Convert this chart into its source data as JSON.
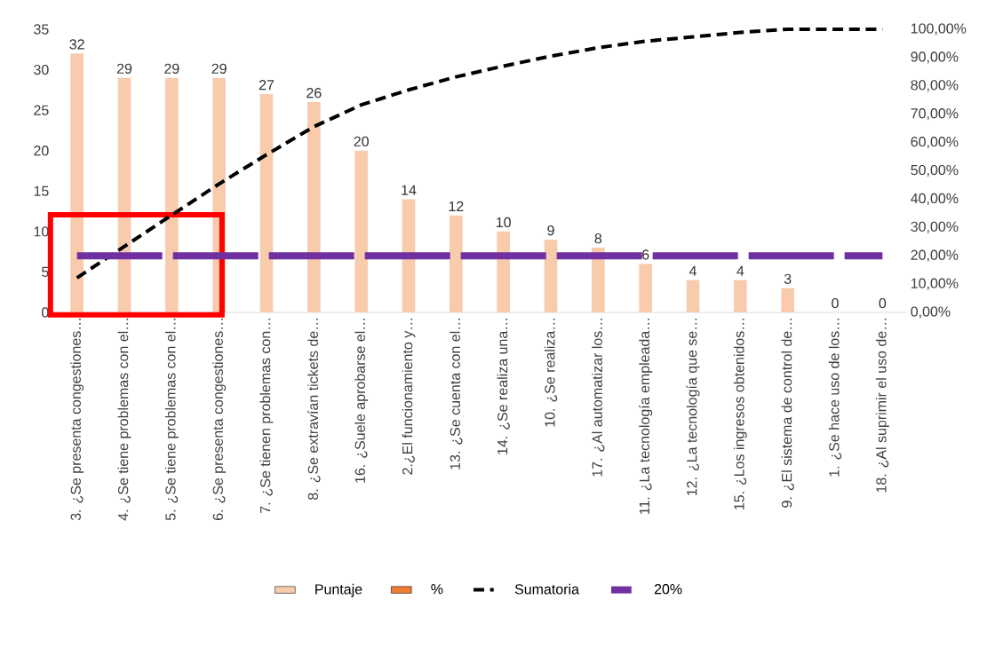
{
  "chart_data": {
    "type": "bar",
    "categories": [
      "3. ¿Se presenta congestiones…",
      "4. ¿Se tiene problemas con el…",
      "5. ¿Se tiene problemas con el…",
      "6. ¿Se presenta congestiones…",
      "7. ¿Se tienen problemas con…",
      "8. ¿Se extravían tickets de…",
      "16. ¿Suele aprobarse el…",
      "2.¿El funcionamiento y…",
      "13. ¿Se cuenta con el…",
      "14. ¿Se realiza una…",
      "10. ¿Se realiza…",
      "17. ¿Al automatizar los…",
      "11. ¿La tecnología empleada…",
      "12. ¿La tecnología que se…",
      "15. ¿Los ingresos obtenidos…",
      "9. ¿El sistema de control de…",
      "1. ¿Se hace uso de los…",
      "18. ¿Al suprimir el uso de…"
    ],
    "series": [
      {
        "name": "Puntaje",
        "color": "#f8cbad",
        "values": [
          32,
          29,
          29,
          29,
          27,
          26,
          20,
          14,
          12,
          10,
          9,
          8,
          6,
          4,
          4,
          3,
          0,
          0
        ],
        "value_labels": [
          "32",
          "29",
          "29",
          "29",
          "27",
          "26",
          "20",
          "14",
          "12",
          "10",
          "9",
          "8",
          "6",
          "4",
          "4",
          "3",
          "0",
          "0"
        ]
      },
      {
        "name": "%",
        "color": "#ed7d31",
        "values": [
          null,
          null,
          null,
          null,
          null,
          null,
          null,
          null,
          null,
          null,
          null,
          null,
          null,
          null,
          null,
          null,
          null,
          null
        ]
      },
      {
        "name": "Sumatoria",
        "type": "line",
        "axis": "y2",
        "color": "#000000",
        "line_style": "dashed",
        "values": [
          12.2,
          23.3,
          34.4,
          45.4,
          55.7,
          65.6,
          73.3,
          78.6,
          83.2,
          87.0,
          90.5,
          93.5,
          95.8,
          97.3,
          98.9,
          100,
          100,
          100
        ]
      },
      {
        "name": "20%",
        "type": "line",
        "axis": "y2",
        "color": "#7030a0",
        "line_style": "dashed",
        "values": [
          20,
          20,
          20,
          20,
          20,
          20,
          20,
          20,
          20,
          20,
          20,
          20,
          20,
          20,
          20,
          20,
          20,
          20
        ]
      }
    ],
    "ylim": [
      0,
      35
    ],
    "yticks": [
      0,
      5,
      10,
      15,
      20,
      25,
      30,
      35
    ],
    "y2lim": [
      0,
      100
    ],
    "y2ticks": [
      {
        "value": 0,
        "label": "0,00%"
      },
      {
        "value": 10,
        "label": "10,00%"
      },
      {
        "value": 20,
        "label": "20,00%"
      },
      {
        "value": 30,
        "label": "30,00%"
      },
      {
        "value": 40,
        "label": "40,00%"
      },
      {
        "value": 50,
        "label": "50,00%"
      },
      {
        "value": 60,
        "label": "60,00%"
      },
      {
        "value": 70,
        "label": "70,00%"
      },
      {
        "value": 80,
        "label": "80,00%"
      },
      {
        "value": 90,
        "label": "90,00%"
      },
      {
        "value": 100,
        "label": "100,00%"
      }
    ],
    "legend": "bottom"
  }
}
